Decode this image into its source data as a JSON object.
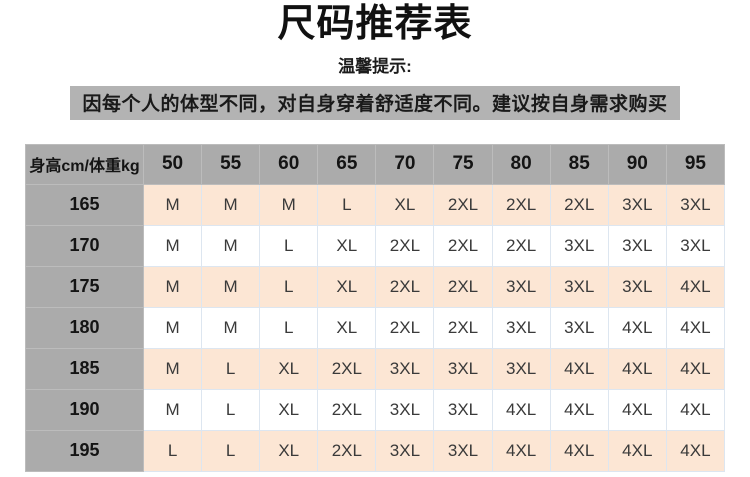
{
  "header": {
    "title": "尺码推荐表",
    "subtitle": "温馨提示:",
    "notice": "因每个人的体型不同，对自身穿着舒适度不同。建议按自身需求购买"
  },
  "colors": {
    "header_gray": "#ababab",
    "notice_gray": "#b3b3b3",
    "row_peach": "#fce6d4",
    "row_white": "#ffffff",
    "title_text": "#111111",
    "cell_text": "#3a3a3a",
    "cell_border": "#dde6f0"
  },
  "chart_data": {
    "type": "table",
    "title": "尺码推荐表",
    "corner": "身高cm/体重kg",
    "columns": [
      "50",
      "55",
      "60",
      "65",
      "70",
      "75",
      "80",
      "85",
      "90",
      "95"
    ],
    "rows": [
      {
        "height": "165",
        "values": [
          "M",
          "M",
          "M",
          "L",
          "XL",
          "2XL",
          "2XL",
          "2XL",
          "3XL",
          "3XL"
        ]
      },
      {
        "height": "170",
        "values": [
          "M",
          "M",
          "L",
          "XL",
          "2XL",
          "2XL",
          "2XL",
          "3XL",
          "3XL",
          "3XL"
        ]
      },
      {
        "height": "175",
        "values": [
          "M",
          "M",
          "L",
          "XL",
          "2XL",
          "2XL",
          "3XL",
          "3XL",
          "3XL",
          "4XL"
        ]
      },
      {
        "height": "180",
        "values": [
          "M",
          "M",
          "L",
          "XL",
          "2XL",
          "2XL",
          "3XL",
          "3XL",
          "4XL",
          "4XL"
        ]
      },
      {
        "height": "185",
        "values": [
          "M",
          "L",
          "XL",
          "2XL",
          "3XL",
          "3XL",
          "3XL",
          "4XL",
          "4XL",
          "4XL"
        ]
      },
      {
        "height": "190",
        "values": [
          "M",
          "L",
          "XL",
          "2XL",
          "3XL",
          "3XL",
          "4XL",
          "4XL",
          "4XL",
          "4XL"
        ]
      },
      {
        "height": "195",
        "values": [
          "L",
          "L",
          "XL",
          "2XL",
          "3XL",
          "3XL",
          "4XL",
          "4XL",
          "4XL",
          "4XL"
        ]
      }
    ],
    "layout": {
      "first_row_style": "peach",
      "alternating": true,
      "header_background": "gray"
    }
  }
}
